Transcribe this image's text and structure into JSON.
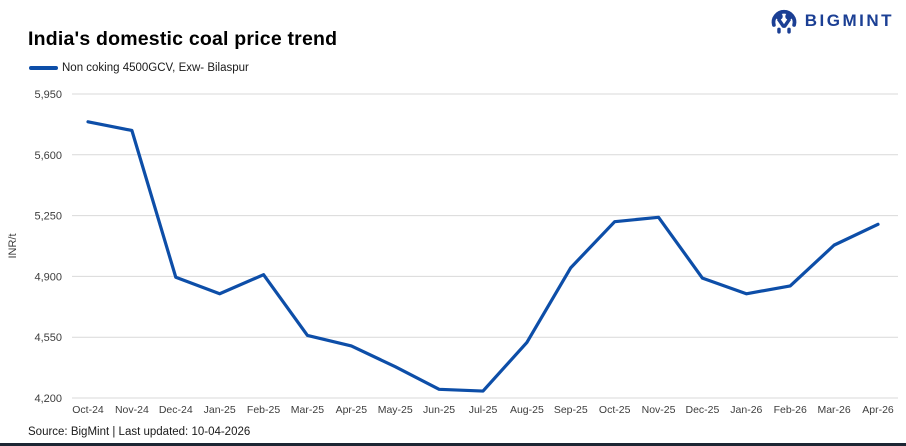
{
  "header": {
    "title": "India's domestic coal price trend",
    "brand": "BIGMINT"
  },
  "legend": {
    "label": "Non coking 4500GCV, Exw- Bilaspur"
  },
  "footer": {
    "source": "Source: BigMint | Last updated: 10-04-2026"
  },
  "colors": {
    "line": "#0d4ea8",
    "brand_navy": "#1b3f94",
    "gridline": "#d9d9d9",
    "bottom_bar": "#1c2633"
  },
  "chart_data": {
    "type": "line",
    "title": "India's domestic coal price trend",
    "series_name": "Non coking 4500GCV, Exw- Bilaspur",
    "categories": [
      "Oct-24",
      "Nov-24",
      "Dec-24",
      "Jan-25",
      "Feb-25",
      "Mar-25",
      "Apr-25",
      "May-25",
      "Jun-25",
      "Jul-25",
      "Aug-25",
      "Sep-25",
      "Oct-25",
      "Nov-25",
      "Dec-25",
      "Jan-26",
      "Feb-26",
      "Mar-26",
      "Apr-26"
    ],
    "values": [
      5790,
      5740,
      4895,
      4800,
      4910,
      4560,
      4500,
      4380,
      4250,
      4240,
      4520,
      4950,
      5215,
      5240,
      4890,
      4800,
      4845,
      5080,
      5200
    ],
    "xlabel": "",
    "ylabel": "INR/t",
    "yticks": [
      4200,
      4550,
      4900,
      5250,
      5600,
      5950
    ],
    "ytick_labels": [
      "4,200",
      "4,550",
      "4,900",
      "5,250",
      "5,600",
      "5,950"
    ],
    "ylim": [
      4200,
      5950
    ],
    "grid": "horizontal",
    "legend_position": "top-left",
    "line_color": "#0d4ea8"
  }
}
